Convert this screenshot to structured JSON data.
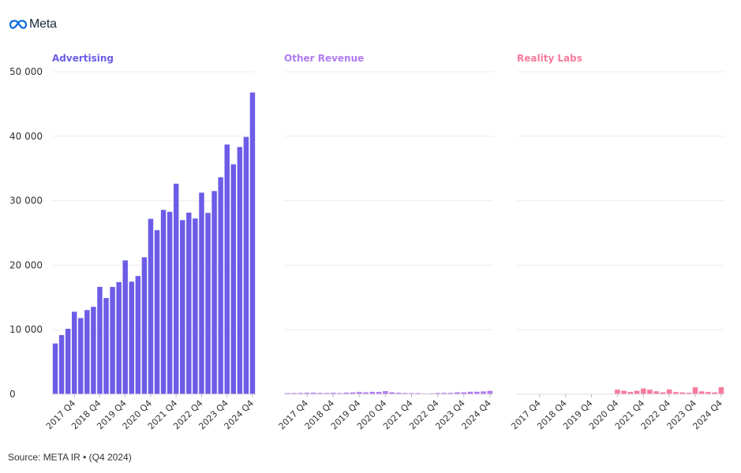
{
  "header": {
    "logo_text": "Meta"
  },
  "source": "Source: META IR • (Q4 2024)",
  "colors": {
    "advertising": "#6c5ce7",
    "other": "#b07cf0",
    "reality": "#f77a9c",
    "grid": "#eeeeee"
  },
  "chart_data": {
    "type": "bar",
    "y_ticks": [
      "0",
      "10 000",
      "20 000",
      "30 000",
      "40 000",
      "50 000"
    ],
    "ylim": [
      0,
      50000
    ],
    "categories": [
      "2017 Q1",
      "2017 Q2",
      "2017 Q3",
      "2017 Q4",
      "2018 Q1",
      "2018 Q2",
      "2018 Q3",
      "2018 Q4",
      "2019 Q1",
      "2019 Q2",
      "2019 Q3",
      "2019 Q4",
      "2020 Q1",
      "2020 Q2",
      "2020 Q3",
      "2020 Q4",
      "2021 Q1",
      "2021 Q2",
      "2021 Q3",
      "2021 Q4",
      "2022 Q1",
      "2022 Q2",
      "2022 Q3",
      "2022 Q4",
      "2023 Q1",
      "2023 Q2",
      "2023 Q3",
      "2023 Q4",
      "2024 Q1",
      "2024 Q2",
      "2024 Q3",
      "2024 Q4"
    ],
    "x_tick_labels": [
      "2017 Q4",
      "2018 Q4",
      "2019 Q4",
      "2020 Q4",
      "2021 Q4",
      "2022 Q4",
      "2023 Q4",
      "2024 Q4"
    ],
    "series": [
      {
        "name": "Advertising",
        "values": [
          7860,
          9160,
          10140,
          12780,
          11800,
          13040,
          13540,
          16640,
          14910,
          16620,
          17380,
          20740,
          17440,
          18320,
          21220,
          27190,
          25440,
          28580,
          28280,
          32640,
          26990,
          28150,
          27240,
          31250,
          28100,
          31500,
          33640,
          38710,
          35640,
          38330,
          39890,
          46780
        ]
      },
      {
        "name": "Other Revenue",
        "values": [
          170,
          170,
          190,
          220,
          230,
          190,
          180,
          220,
          170,
          240,
          270,
          340,
          290,
          370,
          350,
          480,
          290,
          220,
          180,
          160,
          160,
          100,
          120,
          180,
          200,
          200,
          290,
          290,
          380,
          380,
          430,
          520
        ]
      },
      {
        "name": "Reality Labs",
        "values": [
          0,
          0,
          0,
          0,
          0,
          0,
          0,
          0,
          0,
          0,
          0,
          0,
          0,
          0,
          0,
          700,
          530,
          360,
          520,
          880,
          700,
          450,
          290,
          730,
          340,
          280,
          210,
          1070,
          440,
          350,
          270,
          1080
        ]
      }
    ]
  }
}
